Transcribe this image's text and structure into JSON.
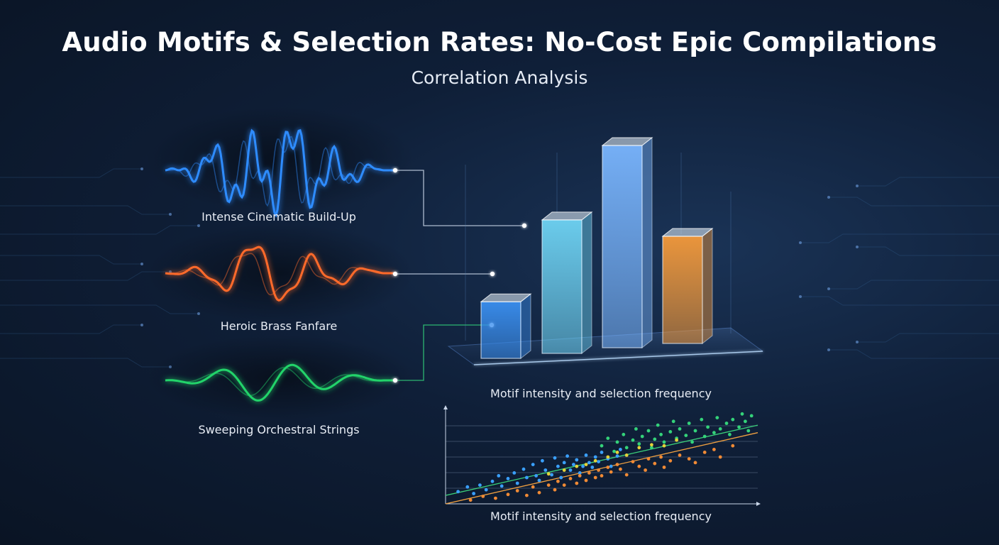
{
  "title": "Audio Motifs & Selection Rates: No-Cost Epic Compilations",
  "subtitle": "Correlation Analysis",
  "motifs": [
    {
      "label": "Intense Cinematic Build-Up",
      "color": "#2f8cff"
    },
    {
      "label": "Heroic Brass Fanfare",
      "color": "#ff6a2b"
    },
    {
      "label": "Sweeping Orchestral Strings",
      "color": "#22d46a"
    }
  ],
  "chart_data": [
    {
      "type": "bar",
      "caption": "Motif intensity and selection frequency",
      "values": [
        0.28,
        0.66,
        1.0,
        0.53
      ],
      "colors": [
        "#3a8ff0",
        "#6fd4f4",
        "#7ab6ff",
        "#f59a3a"
      ],
      "grid": false
    },
    {
      "type": "scatter",
      "caption": "Motif intensity and selection frequency",
      "xlim": [
        0,
        1
      ],
      "ylim": [
        0,
        1
      ],
      "grid": true,
      "trend_lines": [
        {
          "color": "#3ad07a",
          "x": [
            0,
            1
          ],
          "y": [
            0.09,
            0.84
          ]
        },
        {
          "color": "#f0a040",
          "x": [
            0,
            1
          ],
          "y": [
            0.0,
            0.76
          ]
        }
      ],
      "series": [
        {
          "color": "#3aa0ff",
          "points": [
            [
              0.04,
              0.13
            ],
            [
              0.07,
              0.18
            ],
            [
              0.09,
              0.11
            ],
            [
              0.11,
              0.2
            ],
            [
              0.13,
              0.15
            ],
            [
              0.15,
              0.24
            ],
            [
              0.17,
              0.3
            ],
            [
              0.18,
              0.19
            ],
            [
              0.2,
              0.27
            ],
            [
              0.22,
              0.33
            ],
            [
              0.23,
              0.22
            ],
            [
              0.25,
              0.37
            ],
            [
              0.26,
              0.28
            ],
            [
              0.28,
              0.42
            ],
            [
              0.29,
              0.3
            ],
            [
              0.3,
              0.25
            ],
            [
              0.31,
              0.46
            ],
            [
              0.32,
              0.36
            ],
            [
              0.34,
              0.31
            ],
            [
              0.35,
              0.49
            ],
            [
              0.36,
              0.4
            ],
            [
              0.37,
              0.28
            ],
            [
              0.38,
              0.44
            ],
            [
              0.39,
              0.51
            ],
            [
              0.4,
              0.36
            ],
            [
              0.41,
              0.42
            ],
            [
              0.42,
              0.47
            ],
            [
              0.43,
              0.33
            ],
            [
              0.44,
              0.4
            ],
            [
              0.45,
              0.52
            ],
            [
              0.46,
              0.44
            ],
            [
              0.47,
              0.39
            ],
            [
              0.48,
              0.5
            ],
            [
              0.49,
              0.45
            ],
            [
              0.5,
              0.55
            ],
            [
              0.52,
              0.48
            ],
            [
              0.53,
              0.4
            ],
            [
              0.55,
              0.51
            ],
            [
              0.56,
              0.58
            ]
          ]
        },
        {
          "color": "#f08a35",
          "points": [
            [
              0.08,
              0.04
            ],
            [
              0.12,
              0.08
            ],
            [
              0.16,
              0.06
            ],
            [
              0.2,
              0.1
            ],
            [
              0.23,
              0.14
            ],
            [
              0.26,
              0.09
            ],
            [
              0.28,
              0.18
            ],
            [
              0.3,
              0.12
            ],
            [
              0.33,
              0.2
            ],
            [
              0.35,
              0.15
            ],
            [
              0.36,
              0.24
            ],
            [
              0.38,
              0.2
            ],
            [
              0.4,
              0.27
            ],
            [
              0.42,
              0.22
            ],
            [
              0.43,
              0.3
            ],
            [
              0.45,
              0.25
            ],
            [
              0.46,
              0.33
            ],
            [
              0.48,
              0.28
            ],
            [
              0.49,
              0.36
            ],
            [
              0.5,
              0.3
            ],
            [
              0.52,
              0.39
            ],
            [
              0.53,
              0.34
            ],
            [
              0.55,
              0.42
            ],
            [
              0.56,
              0.37
            ],
            [
              0.58,
              0.31
            ],
            [
              0.6,
              0.45
            ],
            [
              0.62,
              0.4
            ],
            [
              0.64,
              0.36
            ],
            [
              0.65,
              0.48
            ],
            [
              0.67,
              0.43
            ],
            [
              0.69,
              0.5
            ],
            [
              0.7,
              0.39
            ],
            [
              0.72,
              0.46
            ],
            [
              0.75,
              0.52
            ],
            [
              0.78,
              0.48
            ],
            [
              0.8,
              0.44
            ],
            [
              0.83,
              0.55
            ],
            [
              0.86,
              0.58
            ],
            [
              0.88,
              0.5
            ],
            [
              0.92,
              0.62
            ]
          ]
        },
        {
          "color": "#34d27a",
          "points": [
            [
              0.5,
              0.62
            ],
            [
              0.52,
              0.7
            ],
            [
              0.54,
              0.56
            ],
            [
              0.55,
              0.66
            ],
            [
              0.57,
              0.74
            ],
            [
              0.58,
              0.6
            ],
            [
              0.6,
              0.68
            ],
            [
              0.61,
              0.8
            ],
            [
              0.62,
              0.64
            ],
            [
              0.63,
              0.72
            ],
            [
              0.65,
              0.78
            ],
            [
              0.66,
              0.6
            ],
            [
              0.67,
              0.69
            ],
            [
              0.68,
              0.84
            ],
            [
              0.69,
              0.74
            ],
            [
              0.7,
              0.66
            ],
            [
              0.72,
              0.77
            ],
            [
              0.73,
              0.88
            ],
            [
              0.74,
              0.7
            ],
            [
              0.75,
              0.8
            ],
            [
              0.77,
              0.73
            ],
            [
              0.78,
              0.86
            ],
            [
              0.79,
              0.66
            ],
            [
              0.8,
              0.78
            ],
            [
              0.82,
              0.9
            ],
            [
              0.83,
              0.72
            ],
            [
              0.84,
              0.82
            ],
            [
              0.86,
              0.76
            ],
            [
              0.87,
              0.92
            ],
            [
              0.88,
              0.8
            ],
            [
              0.9,
              0.86
            ],
            [
              0.91,
              0.74
            ],
            [
              0.92,
              0.9
            ],
            [
              0.94,
              0.82
            ],
            [
              0.95,
              0.96
            ],
            [
              0.96,
              0.88
            ],
            [
              0.97,
              0.78
            ],
            [
              0.98,
              0.94
            ]
          ]
        },
        {
          "color": "#e4d23a",
          "points": [
            [
              0.33,
              0.32
            ],
            [
              0.38,
              0.36
            ],
            [
              0.42,
              0.4
            ],
            [
              0.45,
              0.42
            ],
            [
              0.48,
              0.46
            ],
            [
              0.52,
              0.5
            ],
            [
              0.55,
              0.55
            ],
            [
              0.58,
              0.52
            ],
            [
              0.62,
              0.6
            ],
            [
              0.66,
              0.63
            ],
            [
              0.7,
              0.62
            ],
            [
              0.74,
              0.68
            ]
          ]
        }
      ]
    }
  ]
}
